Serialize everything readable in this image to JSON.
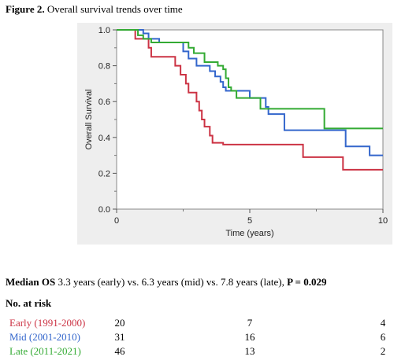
{
  "figure": {
    "label": "Figure 2.",
    "title": "Overall survival trends over time"
  },
  "chart_data": {
    "type": "line",
    "subtype": "kaplan-meier step curves",
    "xlabel": "Time (years)",
    "ylabel": "Overall Survival",
    "xlim": [
      0,
      10
    ],
    "ylim": [
      0,
      1.0
    ],
    "x_ticks": [
      0,
      5,
      10
    ],
    "y_ticks": [
      0.0,
      0.2,
      0.4,
      0.6,
      0.8,
      1.0
    ],
    "y_tick_labels": [
      "0.0",
      "0.2",
      "0.4",
      "0.6",
      "0.8",
      "1.0"
    ],
    "grid": false,
    "series": [
      {
        "color": "#cc3344",
        "steps": [
          [
            0,
            1.0
          ],
          [
            0.7,
            0.95
          ],
          [
            1.2,
            0.9
          ],
          [
            1.3,
            0.85
          ],
          [
            2.2,
            0.8
          ],
          [
            2.4,
            0.75
          ],
          [
            2.6,
            0.7
          ],
          [
            2.7,
            0.65
          ],
          [
            3.0,
            0.6
          ],
          [
            3.1,
            0.55
          ],
          [
            3.2,
            0.5
          ],
          [
            3.3,
            0.46
          ],
          [
            3.5,
            0.41
          ],
          [
            3.6,
            0.37
          ],
          [
            4.0,
            0.36
          ],
          [
            7.0,
            0.29
          ],
          [
            8.5,
            0.22
          ],
          [
            10,
            0.22
          ]
        ]
      },
      {
        "color": "#3366cc",
        "steps": [
          [
            0,
            1.0
          ],
          [
            1.0,
            0.98
          ],
          [
            1.2,
            0.95
          ],
          [
            1.6,
            0.93
          ],
          [
            2.5,
            0.88
          ],
          [
            2.7,
            0.84
          ],
          [
            3.0,
            0.8
          ],
          [
            3.5,
            0.77
          ],
          [
            3.7,
            0.74
          ],
          [
            3.9,
            0.71
          ],
          [
            4.0,
            0.68
          ],
          [
            4.1,
            0.66
          ],
          [
            5.0,
            0.62
          ],
          [
            5.6,
            0.57
          ],
          [
            5.7,
            0.53
          ],
          [
            6.3,
            0.44
          ],
          [
            8.6,
            0.35
          ],
          [
            9.5,
            0.3
          ],
          [
            10,
            0.3
          ]
        ]
      },
      {
        "color": "#33aa33",
        "steps": [
          [
            0,
            1.0
          ],
          [
            0.8,
            0.97
          ],
          [
            1.0,
            0.95
          ],
          [
            1.3,
            0.93
          ],
          [
            2.7,
            0.9
          ],
          [
            2.9,
            0.87
          ],
          [
            3.3,
            0.82
          ],
          [
            3.8,
            0.8
          ],
          [
            4.0,
            0.78
          ],
          [
            4.1,
            0.73
          ],
          [
            4.2,
            0.68
          ],
          [
            4.3,
            0.66
          ],
          [
            4.5,
            0.62
          ],
          [
            5.4,
            0.56
          ],
          [
            7.8,
            0.45
          ],
          [
            10,
            0.45
          ]
        ]
      }
    ]
  },
  "median_os": {
    "label": "Median OS",
    "text": "3.3 years (early) vs. 6.3 years (mid) vs. 7.8 years (late),",
    "p_value": "P = 0.029"
  },
  "risk_table": {
    "title": "No. at risk",
    "rows": [
      {
        "label": "Early (1991-2000)",
        "color": "#cc3344",
        "counts": [
          "20",
          "7",
          "4"
        ]
      },
      {
        "label": "Mid (2001-2010)",
        "color": "#3366cc",
        "counts": [
          "31",
          "16",
          "6"
        ]
      },
      {
        "label": "Late (2011-2021)",
        "color": "#33aa33",
        "counts": [
          "46",
          "13",
          "2"
        ]
      }
    ]
  }
}
